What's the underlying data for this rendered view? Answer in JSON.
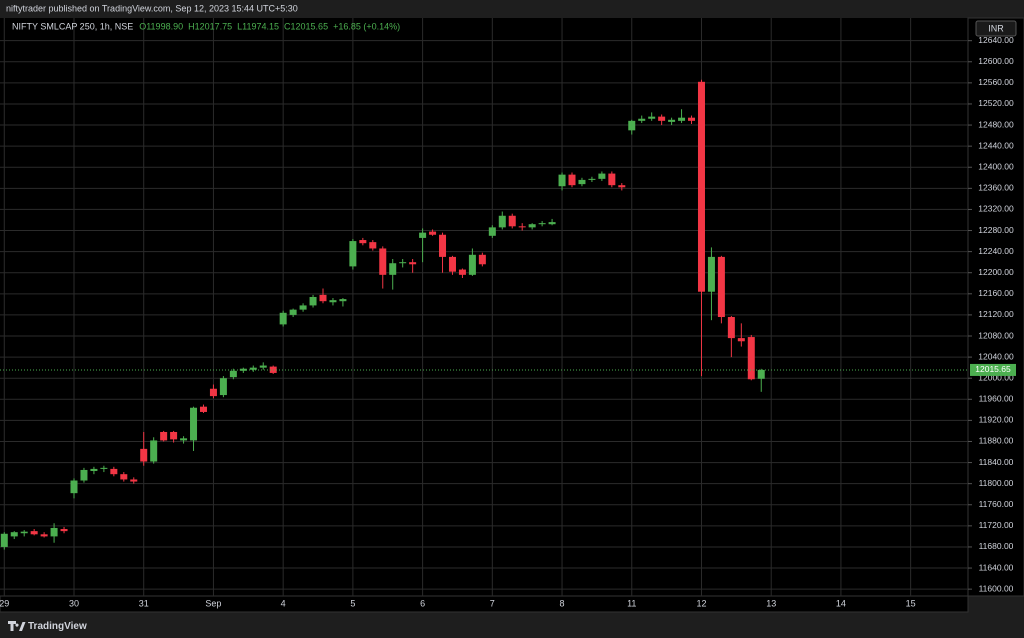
{
  "page": {
    "publisher": "niftytrader published on TradingView.com, Sep 12, 2023 15:44 UTC+5:30",
    "brand": "TradingView"
  },
  "chart_data": {
    "type": "candlestick",
    "symbol": "NIFTY SMLCAP 250, 1h, NSE",
    "header_values": [
      "O11998.90",
      "H12017.75",
      "L11974.15",
      "C12015.65",
      "+16.85 (+0.14%)"
    ],
    "currency": "INR",
    "up_color": "#4caf50",
    "down_color": "#f23645",
    "grid": true,
    "price_label": {
      "value": 12015.65,
      "label": "12015.65"
    },
    "categories": [
      "29",
      null,
      null,
      null,
      null,
      null,
      null,
      "30",
      null,
      null,
      null,
      null,
      null,
      null,
      "31",
      null,
      null,
      null,
      null,
      null,
      null,
      "Sep",
      null,
      null,
      null,
      null,
      null,
      null,
      "4",
      null,
      null,
      null,
      null,
      null,
      null,
      "5",
      null,
      null,
      null,
      null,
      null,
      null,
      "6",
      null,
      null,
      null,
      null,
      null,
      null,
      "7",
      null,
      null,
      null,
      null,
      null,
      null,
      "8",
      null,
      null,
      null,
      null,
      null,
      null,
      "11",
      null,
      null,
      null,
      null,
      null,
      null,
      "12",
      null,
      null,
      null,
      null,
      null,
      null,
      "13",
      null,
      null,
      null,
      null,
      null,
      null,
      "14",
      null,
      null,
      null,
      null,
      null,
      null,
      "15",
      null,
      null,
      null,
      null
    ],
    "open": [
      11680,
      11700,
      11706,
      11710,
      11704,
      11700,
      11714,
      11782,
      11806,
      11824,
      11828,
      11828,
      11818,
      11808,
      11866,
      11842,
      11898,
      11898,
      11882,
      11882,
      11946,
      11980,
      11968,
      12002,
      12014,
      12016,
      12020,
      12022,
      12102,
      12120,
      12130,
      12138,
      12158,
      12144,
      12146,
      12212,
      12262,
      12258,
      12246,
      12196,
      12218,
      12220,
      12266,
      12278,
      12272,
      12230,
      12206,
      12196,
      12234,
      12270,
      12286,
      12308,
      12288,
      12286,
      12292,
      12292,
      12364,
      12386,
      12368,
      12376,
      12378,
      12388,
      12366,
      12470,
      12488,
      12492,
      12496,
      12486,
      12488,
      12494,
      12562,
      12164,
      12230,
      12116,
      12076,
      12078,
      11998.9,
      null,
      null,
      null,
      null,
      null,
      null,
      null,
      null,
      null,
      null,
      null,
      null,
      null,
      null,
      null,
      null,
      null,
      null,
      null
    ],
    "high": [
      11708,
      11710,
      11712,
      11714,
      11708,
      11725,
      11718,
      11810,
      11830,
      11832,
      11834,
      11832,
      11822,
      11812,
      11898,
      11888,
      11900,
      11900,
      11890,
      11946,
      11950,
      11988,
      12004,
      12018,
      12020,
      12024,
      12030,
      12024,
      12128,
      12132,
      12142,
      12158,
      12170,
      12152,
      12152,
      12264,
      12266,
      12262,
      12250,
      12226,
      12226,
      12226,
      12284,
      12282,
      12276,
      12232,
      12208,
      12246,
      12238,
      12290,
      12316,
      12312,
      12294,
      12294,
      12298,
      12302,
      12390,
      12390,
      12380,
      12382,
      12392,
      12392,
      12370,
      12490,
      12498,
      12504,
      12500,
      12494,
      12510,
      12498,
      12566,
      12248,
      12232,
      12118,
      12104,
      12082,
      12017.75,
      null,
      null,
      null,
      null,
      null,
      null,
      null,
      null,
      null,
      null,
      null,
      null,
      null,
      null,
      null,
      null,
      null,
      null,
      null
    ],
    "low": [
      11675,
      11695,
      11700,
      11702,
      11698,
      11688,
      11706,
      11772,
      11802,
      11818,
      11822,
      11814,
      11804,
      11800,
      11834,
      11838,
      11880,
      11878,
      11876,
      11862,
      11934,
      11962,
      11964,
      11998,
      12010,
      12012,
      12016,
      12008,
      12098,
      12116,
      12126,
      12134,
      12142,
      12138,
      12136,
      12206,
      12252,
      12242,
      12170,
      12168,
      12210,
      12200,
      12220,
      12270,
      12200,
      12196,
      12190,
      12194,
      12212,
      12266,
      12282,
      12284,
      12280,
      12282,
      12288,
      12290,
      12356,
      12362,
      12364,
      12372,
      12374,
      12362,
      12356,
      12462,
      12484,
      12488,
      12480,
      12480,
      12484,
      12482,
      12004,
      12110,
      12104,
      12040,
      12060,
      11996,
      11974.15,
      null,
      null,
      null,
      null,
      null,
      null,
      null,
      null,
      null,
      null,
      null,
      null,
      null,
      null,
      null,
      null,
      null,
      null,
      null
    ],
    "close": [
      11705,
      11708,
      11709,
      11704,
      11700,
      11716,
      11710,
      11806,
      11826,
      11828,
      11830,
      11818,
      11808,
      11804,
      11842,
      11882,
      11882,
      11884,
      11886,
      11944,
      11936,
      11966,
      12000,
      12014,
      12018,
      12020,
      12024,
      12010,
      12124,
      12130,
      12138,
      12154,
      12146,
      12148,
      12150,
      12260,
      12256,
      12246,
      12196,
      12218,
      12220,
      12216,
      12276,
      12272,
      12230,
      12202,
      12196,
      12234,
      12216,
      12286,
      12308,
      12288,
      12286,
      12292,
      12294,
      12296,
      12386,
      12366,
      12376,
      12378,
      12388,
      12366,
      12362,
      12488,
      12492,
      12496,
      12488,
      12490,
      12494,
      12488,
      12164,
      12230,
      12116,
      12076,
      12070,
      11998,
      12015.65,
      null,
      null,
      null,
      null,
      null,
      null,
      null,
      null,
      null,
      null,
      null,
      null,
      null,
      null,
      null,
      null,
      null,
      null,
      null
    ],
    "ylim": [
      11587,
      12683
    ],
    "yticks": [
      {
        "value": 12640,
        "label": "12640.00"
      },
      {
        "value": 12600,
        "label": "12600.00"
      },
      {
        "value": 12560,
        "label": "12560.00"
      },
      {
        "value": 12520,
        "label": "12520.00"
      },
      {
        "value": 12480,
        "label": "12480.00"
      },
      {
        "value": 12440,
        "label": "12440.00"
      },
      {
        "value": 12400,
        "label": "12400.00"
      },
      {
        "value": 12360,
        "label": "12360.00"
      },
      {
        "value": 12320,
        "label": "12320.00"
      },
      {
        "value": 12280,
        "label": "12280.00"
      },
      {
        "value": 12240,
        "label": "12240.00"
      },
      {
        "value": 12200,
        "label": "12200.00"
      },
      {
        "value": 12160,
        "label": "12160.00"
      },
      {
        "value": 12120,
        "label": "12120.00"
      },
      {
        "value": 12080,
        "label": "12080.00"
      },
      {
        "value": 12040,
        "label": "12040.00"
      },
      {
        "value": 12000,
        "label": "12000.00"
      },
      {
        "value": 11960,
        "label": "11960.00"
      },
      {
        "value": 11920,
        "label": "11920.00"
      },
      {
        "value": 11880,
        "label": "11880.00"
      },
      {
        "value": 11840,
        "label": "11840.00"
      },
      {
        "value": 11800,
        "label": "11800.00"
      },
      {
        "value": 11760,
        "label": "11760.00"
      },
      {
        "value": 11720,
        "label": "11720.00"
      },
      {
        "value": 11680,
        "label": "11680.00"
      },
      {
        "value": 11640,
        "label": "11640.00"
      },
      {
        "value": 11600,
        "label": "11600.00"
      }
    ]
  }
}
